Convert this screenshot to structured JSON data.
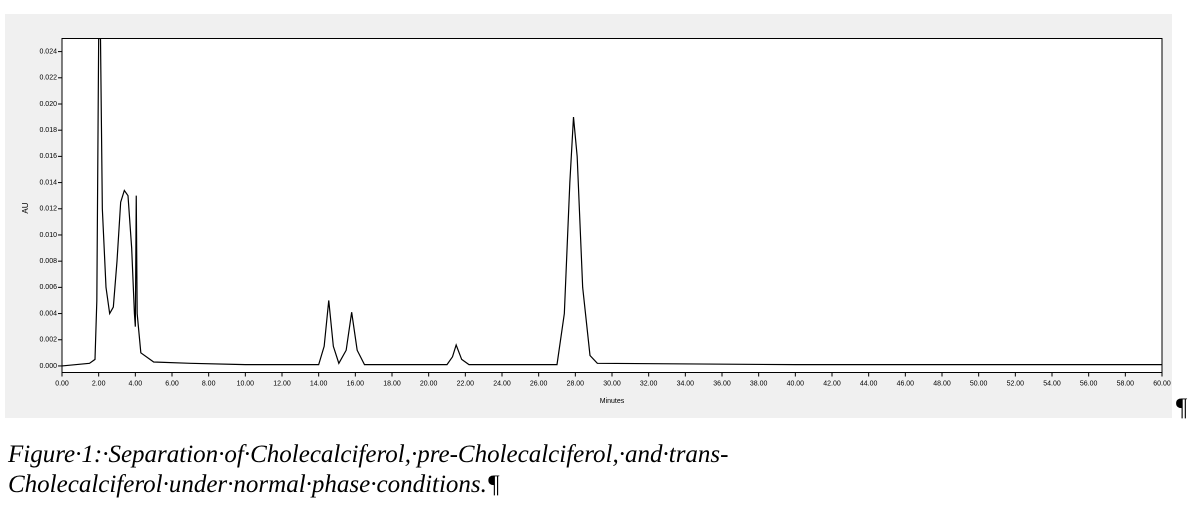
{
  "chart_data": {
    "type": "line",
    "x_label": "Minutes",
    "y_label": "AU",
    "color": "#000000",
    "x": [
      0,
      1.5,
      1.8,
      1.9,
      2.0,
      2.1,
      2.2,
      2.4,
      2.6,
      2.8,
      3.0,
      3.2,
      3.4,
      3.6,
      3.8,
      3.95,
      4.0,
      4.05,
      4.1,
      4.3,
      5,
      7,
      10,
      14,
      14.3,
      14.55,
      14.8,
      15.1,
      15.5,
      15.8,
      16.1,
      16.5,
      21,
      21.3,
      21.5,
      21.8,
      22.2,
      27,
      27.4,
      27.7,
      27.9,
      28.1,
      28.4,
      28.8,
      29.2,
      40,
      60
    ],
    "values": [
      0,
      0.0002,
      0.0005,
      0.005,
      0.025,
      0.025,
      0.012,
      0.006,
      0.004,
      0.0045,
      0.008,
      0.0125,
      0.0134,
      0.013,
      0.009,
      0.004,
      0.003,
      0.013,
      0.004,
      0.001,
      0.0003,
      0.0002,
      0.0001,
      0.0001,
      0.0015,
      0.005,
      0.0015,
      0.0002,
      0.0012,
      0.0041,
      0.0012,
      0.0001,
      0.0001,
      0.0007,
      0.0016,
      0.0005,
      0.0001,
      0.0001,
      0.004,
      0.014,
      0.019,
      0.016,
      0.006,
      0.0008,
      0.0002,
      0.0001,
      0.0001
    ],
    "xlim": [
      0,
      60
    ],
    "ylim": [
      -0.0005,
      0.025
    ],
    "xticks": [
      {
        "value": 0,
        "label": "0.00"
      },
      {
        "value": 2,
        "label": "2.00"
      },
      {
        "value": 4,
        "label": "4.00"
      },
      {
        "value": 6,
        "label": "6.00"
      },
      {
        "value": 8,
        "label": "8.00"
      },
      {
        "value": 10,
        "label": "10.00"
      },
      {
        "value": 12,
        "label": "12.00"
      },
      {
        "value": 14,
        "label": "14.00"
      },
      {
        "value": 16,
        "label": "16.00"
      },
      {
        "value": 18,
        "label": "18.00"
      },
      {
        "value": 20,
        "label": "20.00"
      },
      {
        "value": 22,
        "label": "22.00"
      },
      {
        "value": 24,
        "label": "24.00"
      },
      {
        "value": 26,
        "label": "26.00"
      },
      {
        "value": 28,
        "label": "28.00"
      },
      {
        "value": 30,
        "label": "30.00"
      },
      {
        "value": 32,
        "label": "32.00"
      },
      {
        "value": 34,
        "label": "34.00"
      },
      {
        "value": 36,
        "label": "36.00"
      },
      {
        "value": 38,
        "label": "38.00"
      },
      {
        "value": 40,
        "label": "40.00"
      },
      {
        "value": 42,
        "label": "42.00"
      },
      {
        "value": 44,
        "label": "44.00"
      },
      {
        "value": 46,
        "label": "46.00"
      },
      {
        "value": 48,
        "label": "48.00"
      },
      {
        "value": 50,
        "label": "50.00"
      },
      {
        "value": 52,
        "label": "52.00"
      },
      {
        "value": 54,
        "label": "54.00"
      },
      {
        "value": 56,
        "label": "56.00"
      },
      {
        "value": 58,
        "label": "58.00"
      },
      {
        "value": 60,
        "label": "60.00"
      }
    ],
    "yticks": [
      {
        "value": 0,
        "label": "0.000"
      },
      {
        "value": 0.002,
        "label": "0.002"
      },
      {
        "value": 0.004,
        "label": "0.004"
      },
      {
        "value": 0.006,
        "label": "0.006"
      },
      {
        "value": 0.008,
        "label": "0.008"
      },
      {
        "value": 0.01,
        "label": "0.010"
      },
      {
        "value": 0.012,
        "label": "0.012"
      },
      {
        "value": 0.014,
        "label": "0.014"
      },
      {
        "value": 0.016,
        "label": "0.016"
      },
      {
        "value": 0.018,
        "label": "0.018"
      },
      {
        "value": 0.02,
        "label": "0.020"
      },
      {
        "value": 0.022,
        "label": "0.022"
      },
      {
        "value": 0.024,
        "label": "0.024"
      }
    ]
  },
  "caption": "Figure·1:·Separation·of·Cholecalciferol,·pre-Cholecalciferol,·and·trans-Cholecalciferol·under·normal·phase·conditions.¶",
  "paragraph_mark": "¶"
}
